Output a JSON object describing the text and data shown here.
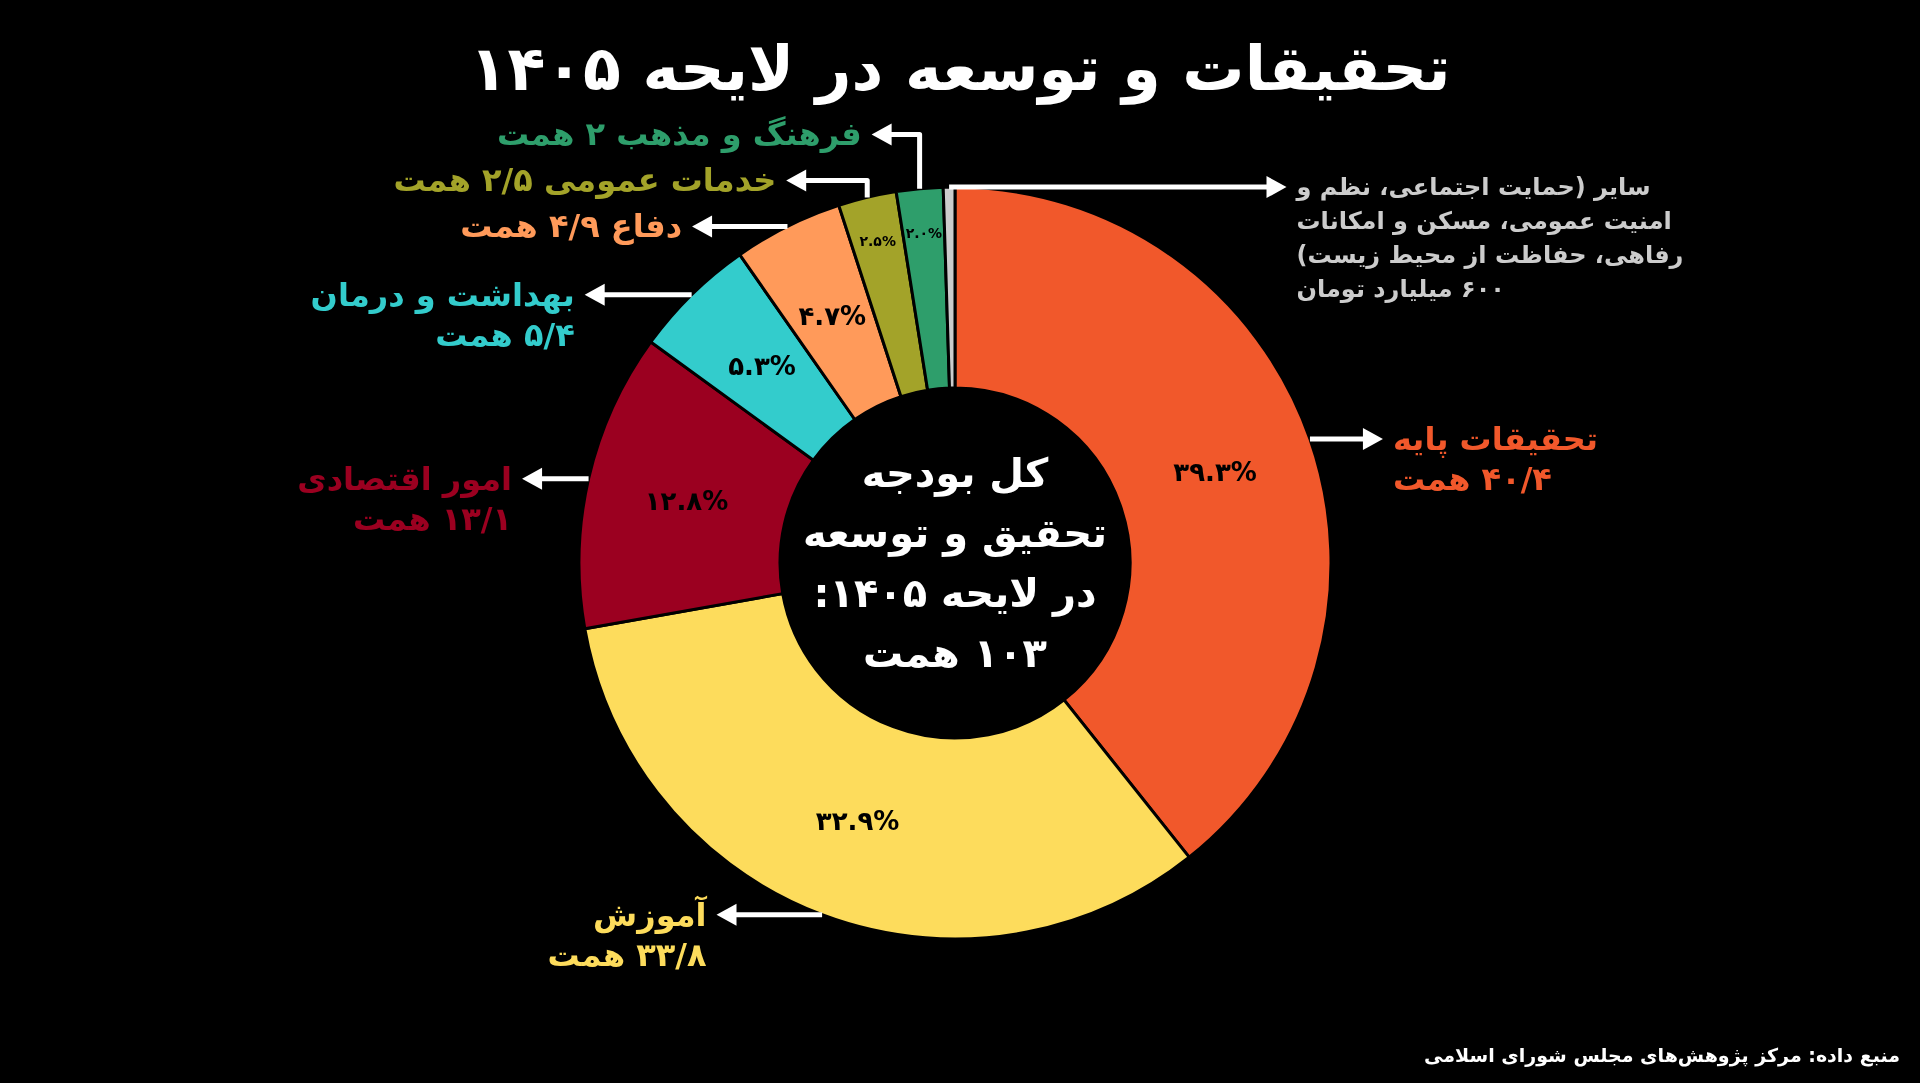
{
  "chart_data": {
    "type": "donut",
    "title": "تحقیقات و توسعه در لایحه ۱۴۰۵",
    "categories": [
      "تحقیقات پایه\n۴۰/۴ همت",
      "آموزش\n۳۳/۸ همت",
      "امور اقتصادی\n۱۳/۱ همت",
      "بهداشت و درمان\n۵/۴ همت",
      "دفاع ۴/۹ همت",
      "خدمات عمومی ۲/۵ همت",
      "فرهنگ و مذهب ۲ همت",
      "سایر (حمایت اجتماعی، نظم و\nامنیت عمومی، مسکن و امکانات\nرفاهی، حفاظت از محیط زیست)\n۶۰۰ میلیارد تومان"
    ],
    "values": [
      39.3,
      32.9,
      12.8,
      5.3,
      4.7,
      2.5,
      2.0,
      0.5
    ],
    "colors": [
      "#f1582b",
      "#fddc5c",
      "#9b0020",
      "#33cccc",
      "#ff9a5a",
      "#a3a329",
      "#2e9e6b",
      "#cccccc"
    ],
    "value_labels": [
      "۳۹.۳%",
      "۳۲.۹%",
      "۱۲.۸%",
      "۵.۳%",
      "۴.۷%",
      "۲.۵%",
      "۲.۰%",
      null
    ],
    "annotations": [
      "کل بودجه\nتحقیق و توسعه\nدر لایحه ۱۴۰۵:\n۱۰۳ همت",
      "منبع داده:  مرکز پژوهش‌های مجلس شورای اسلامی"
    ]
  }
}
